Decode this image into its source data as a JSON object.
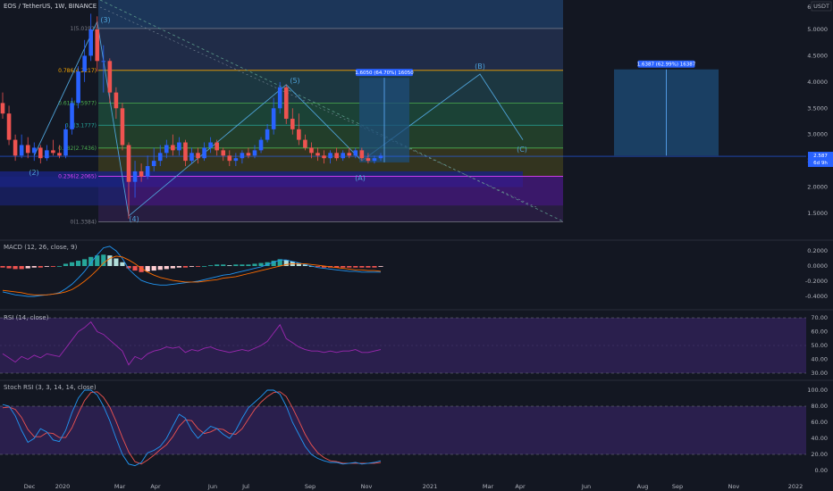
{
  "header": {
    "symbol_line": "EOS / TetherUS, 1W, BINANCE",
    "quote_unit": "USDT",
    "last_price": "2.587",
    "countdown": "6d 9h"
  },
  "colors": {
    "background": "#131722",
    "up": "#2962ff",
    "down": "#ef5350",
    "wave": "#4fa3d9",
    "trend": "#5b9a8b",
    "rsi_band": "#2a1f4d",
    "rsi_line": "#9c27b0",
    "stoch_k": "#2196f3",
    "stoch_d": "#ef5350",
    "macd_line": "#2196f3",
    "signal_line": "#ff6d00",
    "hist_pos_strong": "#26a69a",
    "hist_pos_weak": "#b2dfdb",
    "hist_neg_strong": "#ef5350",
    "hist_neg_weak": "#ffcdd2"
  },
  "chart_data": [
    {
      "type": "candlestick",
      "name": "price",
      "x_ticks": [
        "Dec",
        "2020",
        "Mar",
        "Apr",
        "Jun",
        "Jul",
        "Sep",
        "Nov",
        "2021",
        "Mar",
        "Apr",
        "Jun",
        "Aug",
        "Sep",
        "Nov",
        "2022"
      ],
      "y_ticks": [
        "6.0000",
        "5.0000",
        "4.5000",
        "4.0000",
        "3.5000",
        "3.0000",
        "2.5000",
        "2.0000",
        "1.5000"
      ],
      "ylim": [
        1.3,
        6.0
      ],
      "y_scale": "linear",
      "candles": [
        {
          "o": 3.6,
          "h": 3.8,
          "l": 3.3,
          "c": 3.4
        },
        {
          "o": 3.4,
          "h": 3.55,
          "l": 2.8,
          "c": 2.9
        },
        {
          "o": 2.9,
          "h": 3.0,
          "l": 2.5,
          "c": 2.6
        },
        {
          "o": 2.6,
          "h": 3.0,
          "l": 2.55,
          "c": 2.8
        },
        {
          "o": 2.8,
          "h": 2.95,
          "l": 2.55,
          "c": 2.65
        },
        {
          "o": 2.65,
          "h": 2.85,
          "l": 2.5,
          "c": 2.75
        },
        {
          "o": 2.75,
          "h": 2.8,
          "l": 2.45,
          "c": 2.55
        },
        {
          "o": 2.55,
          "h": 2.8,
          "l": 2.5,
          "c": 2.7
        },
        {
          "o": 2.7,
          "h": 2.9,
          "l": 2.6,
          "c": 2.65
        },
        {
          "o": 2.65,
          "h": 2.8,
          "l": 2.55,
          "c": 2.6
        },
        {
          "o": 2.6,
          "h": 3.2,
          "l": 2.55,
          "c": 3.1
        },
        {
          "o": 3.1,
          "h": 3.7,
          "l": 3.0,
          "c": 3.6
        },
        {
          "o": 3.6,
          "h": 4.3,
          "l": 3.5,
          "c": 4.2
        },
        {
          "o": 4.2,
          "h": 4.8,
          "l": 4.0,
          "c": 4.5
        },
        {
          "o": 4.5,
          "h": 5.3,
          "l": 4.4,
          "c": 5.0
        },
        {
          "o": 5.0,
          "h": 5.25,
          "l": 4.2,
          "c": 4.4
        },
        {
          "o": 4.4,
          "h": 4.7,
          "l": 3.8,
          "c": 4.4
        },
        {
          "o": 4.4,
          "h": 4.45,
          "l": 3.6,
          "c": 3.8
        },
        {
          "o": 3.8,
          "h": 3.9,
          "l": 3.3,
          "c": 3.5
        },
        {
          "o": 3.5,
          "h": 3.6,
          "l": 2.7,
          "c": 2.8
        },
        {
          "o": 2.8,
          "h": 2.85,
          "l": 1.4,
          "c": 2.1
        },
        {
          "o": 2.1,
          "h": 2.5,
          "l": 1.8,
          "c": 2.3
        },
        {
          "o": 2.3,
          "h": 2.45,
          "l": 2.1,
          "c": 2.2
        },
        {
          "o": 2.2,
          "h": 2.6,
          "l": 2.15,
          "c": 2.4
        },
        {
          "o": 2.4,
          "h": 2.75,
          "l": 2.3,
          "c": 2.5
        },
        {
          "o": 2.5,
          "h": 2.8,
          "l": 2.4,
          "c": 2.65
        },
        {
          "o": 2.65,
          "h": 2.9,
          "l": 2.55,
          "c": 2.8
        },
        {
          "o": 2.8,
          "h": 3.0,
          "l": 2.6,
          "c": 2.7
        },
        {
          "o": 2.7,
          "h": 2.95,
          "l": 2.6,
          "c": 2.85
        },
        {
          "o": 2.85,
          "h": 2.9,
          "l": 2.4,
          "c": 2.5
        },
        {
          "o": 2.5,
          "h": 2.75,
          "l": 2.45,
          "c": 2.65
        },
        {
          "o": 2.65,
          "h": 2.75,
          "l": 2.45,
          "c": 2.55
        },
        {
          "o": 2.55,
          "h": 2.85,
          "l": 2.5,
          "c": 2.75
        },
        {
          "o": 2.75,
          "h": 2.95,
          "l": 2.65,
          "c": 2.85
        },
        {
          "o": 2.85,
          "h": 2.9,
          "l": 2.6,
          "c": 2.7
        },
        {
          "o": 2.7,
          "h": 2.75,
          "l": 2.5,
          "c": 2.6
        },
        {
          "o": 2.6,
          "h": 2.7,
          "l": 2.4,
          "c": 2.5
        },
        {
          "o": 2.5,
          "h": 2.65,
          "l": 2.4,
          "c": 2.55
        },
        {
          "o": 2.55,
          "h": 2.7,
          "l": 2.45,
          "c": 2.65
        },
        {
          "o": 2.65,
          "h": 2.75,
          "l": 2.55,
          "c": 2.6
        },
        {
          "o": 2.6,
          "h": 2.8,
          "l": 2.55,
          "c": 2.7
        },
        {
          "o": 2.7,
          "h": 2.95,
          "l": 2.65,
          "c": 2.9
        },
        {
          "o": 2.9,
          "h": 3.2,
          "l": 2.85,
          "c": 3.1
        },
        {
          "o": 3.1,
          "h": 3.7,
          "l": 3.0,
          "c": 3.5
        },
        {
          "o": 3.5,
          "h": 4.0,
          "l": 3.4,
          "c": 3.9
        },
        {
          "o": 3.9,
          "h": 3.95,
          "l": 3.2,
          "c": 3.3
        },
        {
          "o": 3.3,
          "h": 3.5,
          "l": 3.0,
          "c": 3.1
        },
        {
          "o": 3.1,
          "h": 3.4,
          "l": 2.8,
          "c": 2.9
        },
        {
          "o": 2.9,
          "h": 3.0,
          "l": 2.7,
          "c": 2.75
        },
        {
          "o": 2.75,
          "h": 2.85,
          "l": 2.55,
          "c": 2.65
        },
        {
          "o": 2.65,
          "h": 2.75,
          "l": 2.5,
          "c": 2.6
        },
        {
          "o": 2.6,
          "h": 2.7,
          "l": 2.45,
          "c": 2.55
        },
        {
          "o": 2.55,
          "h": 2.7,
          "l": 2.45,
          "c": 2.65
        },
        {
          "o": 2.65,
          "h": 2.75,
          "l": 2.5,
          "c": 2.55
        },
        {
          "o": 2.55,
          "h": 2.7,
          "l": 2.5,
          "c": 2.65
        },
        {
          "o": 2.65,
          "h": 2.75,
          "l": 2.55,
          "c": 2.6
        },
        {
          "o": 2.6,
          "h": 2.75,
          "l": 2.55,
          "c": 2.7
        },
        {
          "o": 2.7,
          "h": 2.75,
          "l": 2.5,
          "c": 2.55
        },
        {
          "o": 2.55,
          "h": 2.65,
          "l": 2.45,
          "c": 2.5
        },
        {
          "o": 2.5,
          "h": 2.6,
          "l": 2.45,
          "c": 2.55
        },
        {
          "o": 2.55,
          "h": 2.65,
          "l": 2.5,
          "c": 2.6
        }
      ],
      "fib_levels": [
        {
          "label": "1(5.0193)",
          "value": 5.0193,
          "color": "#787b86"
        },
        {
          "label": "0.786(4.2217)",
          "value": 4.2217,
          "color": "#f7a600"
        },
        {
          "label": "0.618(3.5977)",
          "value": 3.5977,
          "color": "#4caf50"
        },
        {
          "label": "0.5(3.1777)",
          "value": 3.1777,
          "color": "#26a69a"
        },
        {
          "label": "0.382(2.7436)",
          "value": 2.7436,
          "color": "#4caf50"
        },
        {
          "label": "0.236(2.2065)",
          "value": 2.2065,
          "color": "#e040fb"
        },
        {
          "label": "0(1.3384)",
          "value": 1.3384,
          "color": "#787b86"
        }
      ],
      "wave_labels": [
        "(2)",
        "(3)",
        "(4)",
        "(5)",
        "(A)",
        "(B)",
        "(C)"
      ],
      "range_boxes": [
        {
          "label": "1.6050 (64.70%) 16050",
          "from": 2.47,
          "to": 4.08
        },
        {
          "label": "1.6387 (62.99%) 16387",
          "from": 2.6,
          "to": 4.24
        }
      ]
    },
    {
      "type": "bar",
      "name": "MACD (12, 26, close, 9)",
      "y_ticks": [
        "0.2000",
        "0.0000",
        "-0.2000",
        "-0.4000"
      ],
      "ylim": [
        -0.48,
        0.32
      ],
      "histogram": [
        -0.02,
        -0.03,
        -0.04,
        -0.04,
        -0.03,
        -0.02,
        -0.02,
        -0.01,
        -0.01,
        0.0,
        0.03,
        0.05,
        0.07,
        0.09,
        0.12,
        0.14,
        0.15,
        0.14,
        0.1,
        0.05,
        -0.03,
        -0.06,
        -0.08,
        -0.07,
        -0.06,
        -0.05,
        -0.04,
        -0.03,
        -0.02,
        -0.02,
        -0.01,
        -0.01,
        0.0,
        0.01,
        0.02,
        0.02,
        0.01,
        0.02,
        0.02,
        0.02,
        0.03,
        0.04,
        0.05,
        0.07,
        0.09,
        0.08,
        0.06,
        0.04,
        0.02,
        0.0,
        -0.01,
        -0.02,
        -0.02,
        -0.02,
        -0.02,
        -0.02,
        -0.02,
        -0.02,
        -0.02,
        -0.02,
        -0.01
      ],
      "macd": [
        -0.34,
        -0.36,
        -0.38,
        -0.39,
        -0.4,
        -0.4,
        -0.39,
        -0.38,
        -0.37,
        -0.35,
        -0.3,
        -0.24,
        -0.16,
        -0.07,
        0.04,
        0.15,
        0.24,
        0.26,
        0.2,
        0.1,
        -0.04,
        -0.12,
        -0.19,
        -0.22,
        -0.24,
        -0.25,
        -0.25,
        -0.24,
        -0.23,
        -0.22,
        -0.21,
        -0.2,
        -0.18,
        -0.16,
        -0.14,
        -0.12,
        -0.11,
        -0.09,
        -0.07,
        -0.05,
        -0.03,
        -0.01,
        0.02,
        0.05,
        0.08,
        0.08,
        0.06,
        0.04,
        0.02,
        0.0,
        -0.02,
        -0.03,
        -0.04,
        -0.05,
        -0.06,
        -0.07,
        -0.07,
        -0.08,
        -0.08,
        -0.08,
        -0.08
      ],
      "signal": [
        -0.32,
        -0.33,
        -0.34,
        -0.35,
        -0.37,
        -0.38,
        -0.38,
        -0.38,
        -0.37,
        -0.36,
        -0.34,
        -0.31,
        -0.26,
        -0.2,
        -0.13,
        -0.05,
        0.04,
        0.1,
        0.13,
        0.12,
        0.08,
        0.03,
        -0.03,
        -0.08,
        -0.12,
        -0.15,
        -0.17,
        -0.19,
        -0.2,
        -0.21,
        -0.21,
        -0.21,
        -0.2,
        -0.19,
        -0.18,
        -0.16,
        -0.15,
        -0.14,
        -0.12,
        -0.1,
        -0.08,
        -0.06,
        -0.04,
        -0.02,
        0.0,
        0.02,
        0.03,
        0.03,
        0.03,
        0.02,
        0.01,
        0.0,
        -0.01,
        -0.02,
        -0.03,
        -0.04,
        -0.05,
        -0.05,
        -0.06,
        -0.06,
        -0.07
      ]
    },
    {
      "type": "line",
      "name": "RSI (14, close)",
      "y_ticks": [
        "70.00",
        "60.00",
        "50.00",
        "40.00",
        "30.00"
      ],
      "ylim": [
        28,
        72
      ],
      "band": [
        30,
        70
      ],
      "values": [
        44,
        41,
        38,
        42,
        40,
        43,
        41,
        44,
        43,
        42,
        48,
        54,
        60,
        63,
        67,
        60,
        58,
        54,
        50,
        46,
        36,
        42,
        40,
        44,
        46,
        47,
        49,
        48,
        49,
        45,
        47,
        46,
        48,
        49,
        47,
        46,
        45,
        46,
        47,
        46,
        48,
        50,
        53,
        59,
        65,
        55,
        52,
        49,
        47,
        46,
        46,
        45,
        46,
        45,
        46,
        46,
        47,
        45,
        45,
        46,
        47
      ]
    },
    {
      "type": "line",
      "name": "Stoch RSI (3, 3, 14, 14, close)",
      "y_ticks": [
        "100.00",
        "80.00",
        "60.00",
        "40.00",
        "20.00",
        "0.00"
      ],
      "ylim": [
        -6,
        106
      ],
      "band": [
        20,
        80
      ],
      "series": [
        {
          "name": "K",
          "values": [
            82,
            80,
            68,
            50,
            35,
            40,
            52,
            48,
            38,
            36,
            50,
            72,
            90,
            100,
            100,
            94,
            80,
            62,
            40,
            20,
            8,
            6,
            10,
            22,
            25,
            30,
            40,
            55,
            70,
            65,
            50,
            40,
            48,
            55,
            52,
            45,
            40,
            50,
            65,
            78,
            85,
            92,
            100,
            100,
            95,
            80,
            60,
            45,
            30,
            20,
            15,
            12,
            10,
            10,
            8,
            9,
            10,
            8,
            9,
            10,
            12
          ]
        },
        {
          "name": "D",
          "values": [
            78,
            79,
            76,
            66,
            51,
            42,
            42,
            47,
            46,
            41,
            41,
            53,
            71,
            87,
            97,
            98,
            91,
            79,
            61,
            41,
            23,
            11,
            8,
            13,
            19,
            26,
            32,
            42,
            55,
            63,
            62,
            52,
            46,
            48,
            52,
            51,
            46,
            45,
            52,
            64,
            76,
            85,
            92,
            97,
            98,
            92,
            78,
            62,
            45,
            32,
            22,
            16,
            12,
            11,
            9,
            9,
            9,
            9,
            9,
            9,
            10
          ]
        }
      ]
    }
  ]
}
